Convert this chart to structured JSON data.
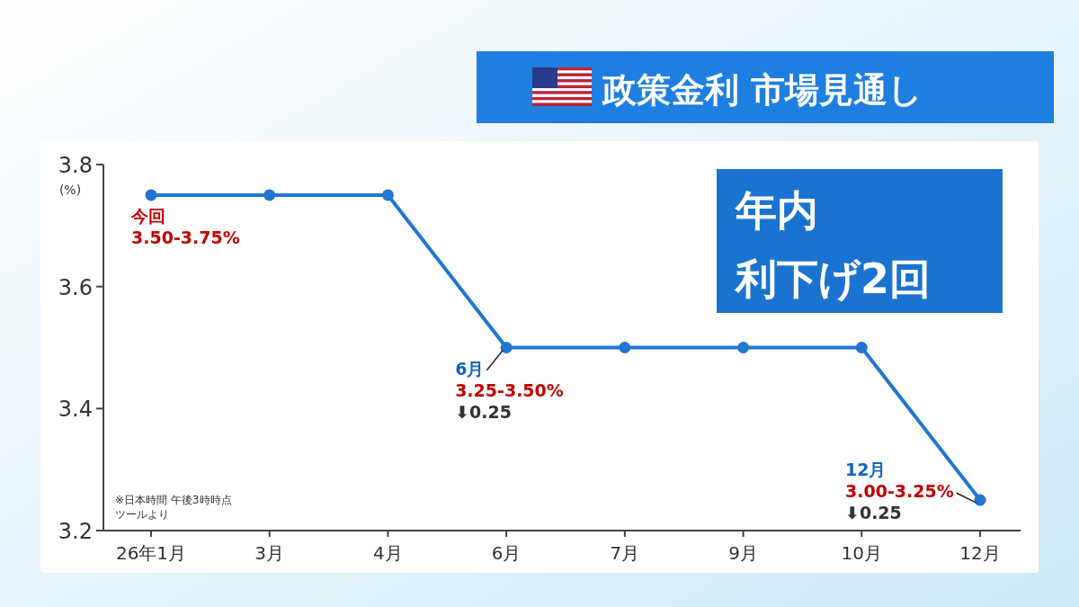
{
  "chart_data": {
    "type": "line",
    "title": "政策金利 市場見通し",
    "ylabel": "(%)",
    "categories": [
      "26年1月",
      "3月",
      "4月",
      "6月",
      "7月",
      "9月",
      "10月",
      "12月"
    ],
    "series": [
      {
        "color": "#2176d2",
        "values": [
          3.75,
          3.75,
          3.75,
          3.5,
          3.5,
          3.5,
          3.5,
          3.25
        ]
      }
    ],
    "ylim": [
      3.2,
      3.8
    ],
    "yticks": [
      3.2,
      3.4,
      3.6,
      3.8
    ],
    "marker": "circle",
    "annotations": [
      {
        "text": "今回\n3.50-3.75%",
        "x": "26年1月",
        "y": 3.75
      },
      {
        "text": "6月\n3.25-3.50%\n⬇0.25",
        "x": "6月",
        "y": 3.5
      },
      {
        "text": "12月\n3.00-3.25%\n⬇0.25",
        "x": "12月",
        "y": 3.25
      },
      "年内",
      "利下げ2回",
      "※日本時間 午後3時時点",
      "ツールより"
    ]
  }
}
